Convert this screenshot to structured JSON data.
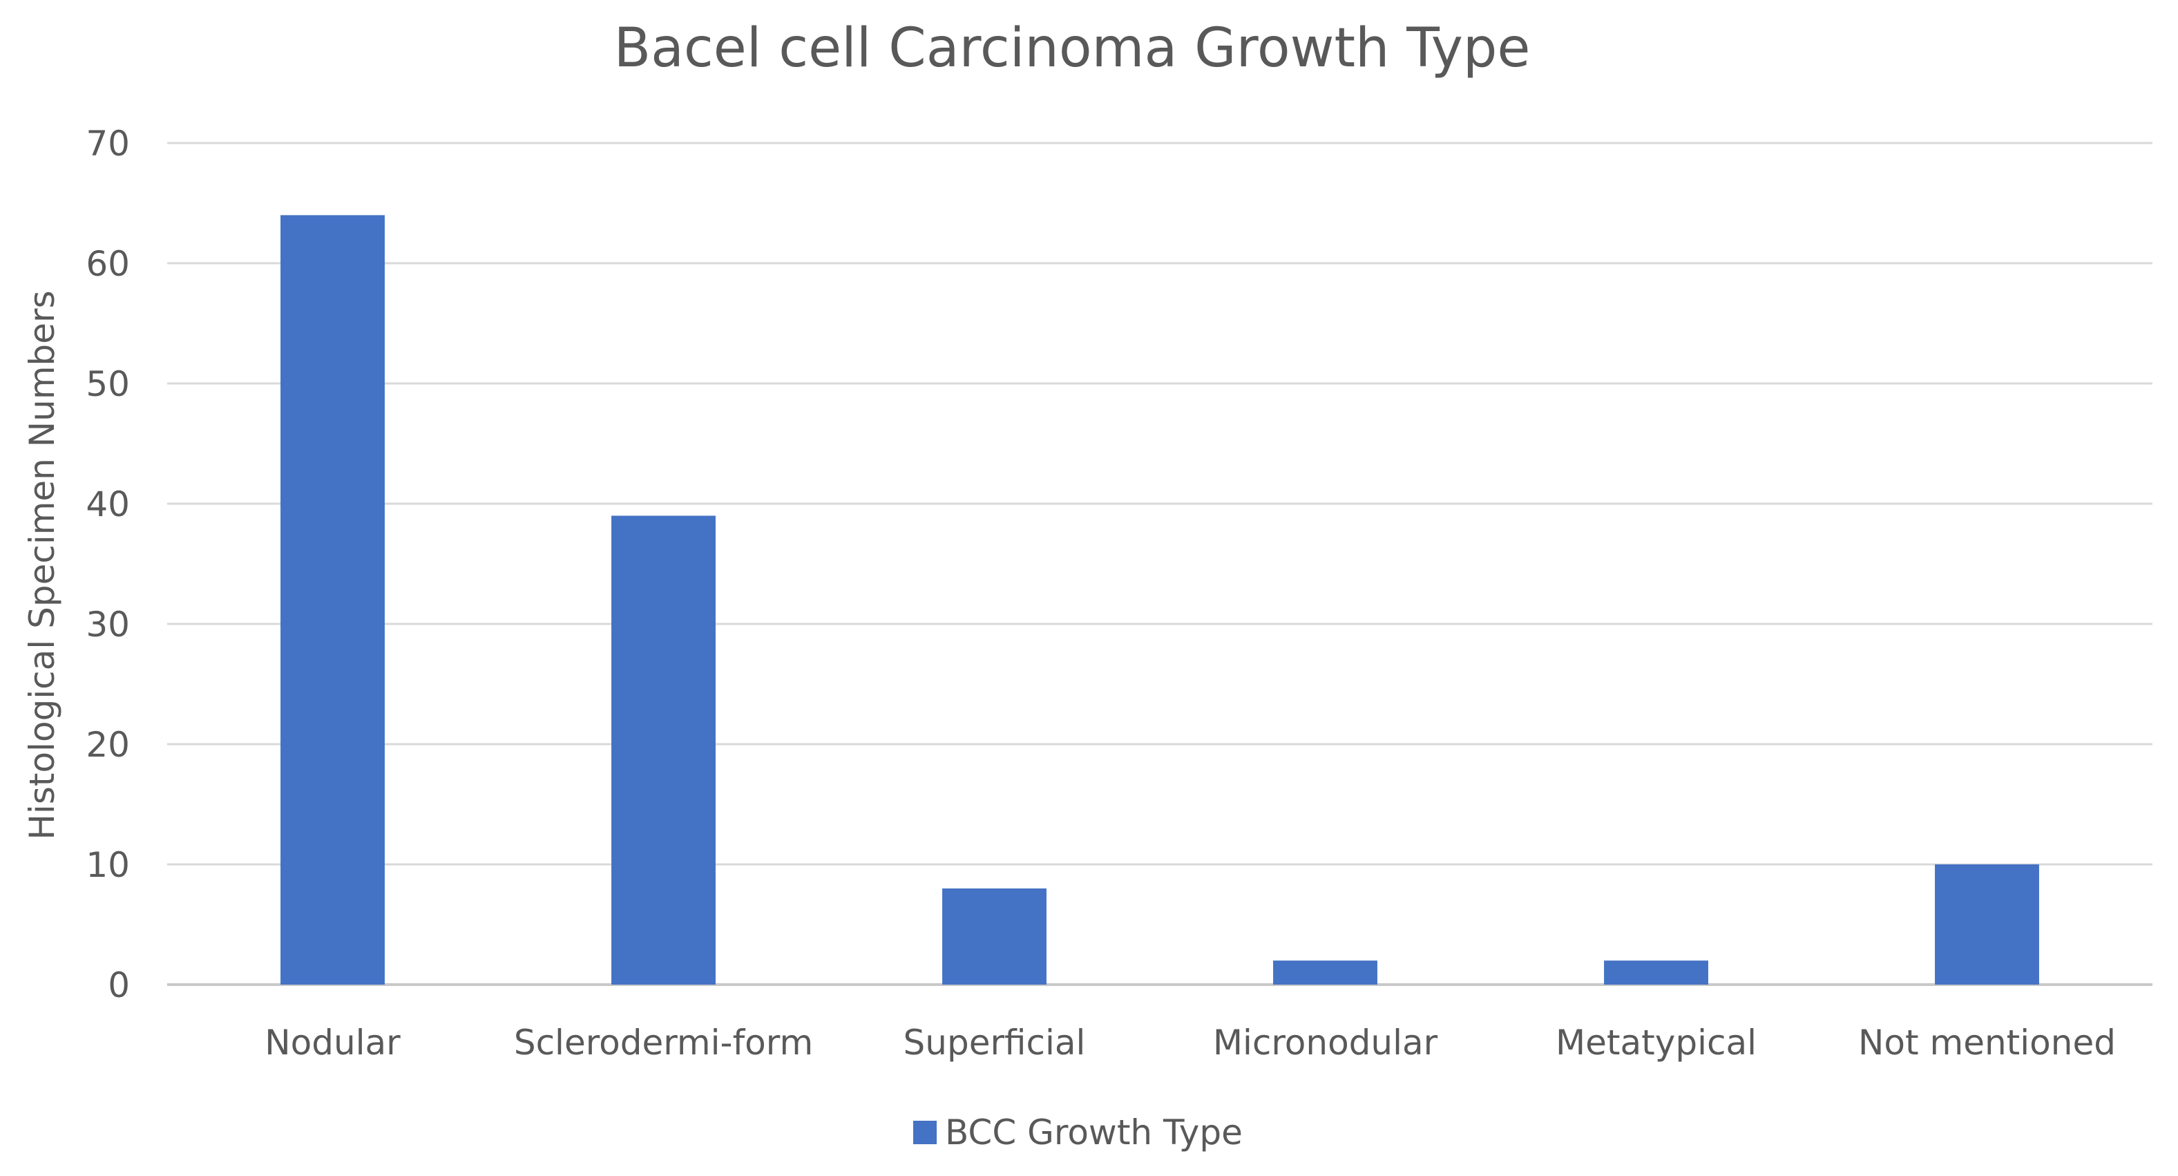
{
  "chart_data": {
    "type": "bar",
    "title": "Bacel cell Carcinoma Growth Type",
    "xlabel": "",
    "ylabel": "Histological Specimen Numbers",
    "categories": [
      "Nodular",
      "Sclerodermi-form",
      "Superficial",
      "Micronodular",
      "Metatypical",
      "Not mentioned"
    ],
    "series": [
      {
        "name": "BCC Growth Type",
        "values": [
          64,
          39,
          8,
          2,
          2,
          10
        ],
        "color": "#4472c4"
      }
    ],
    "ylim": [
      0,
      70
    ],
    "yticks": [
      0,
      10,
      20,
      30,
      40,
      50,
      60,
      70
    ],
    "grid": true,
    "legend_position": "bottom"
  }
}
